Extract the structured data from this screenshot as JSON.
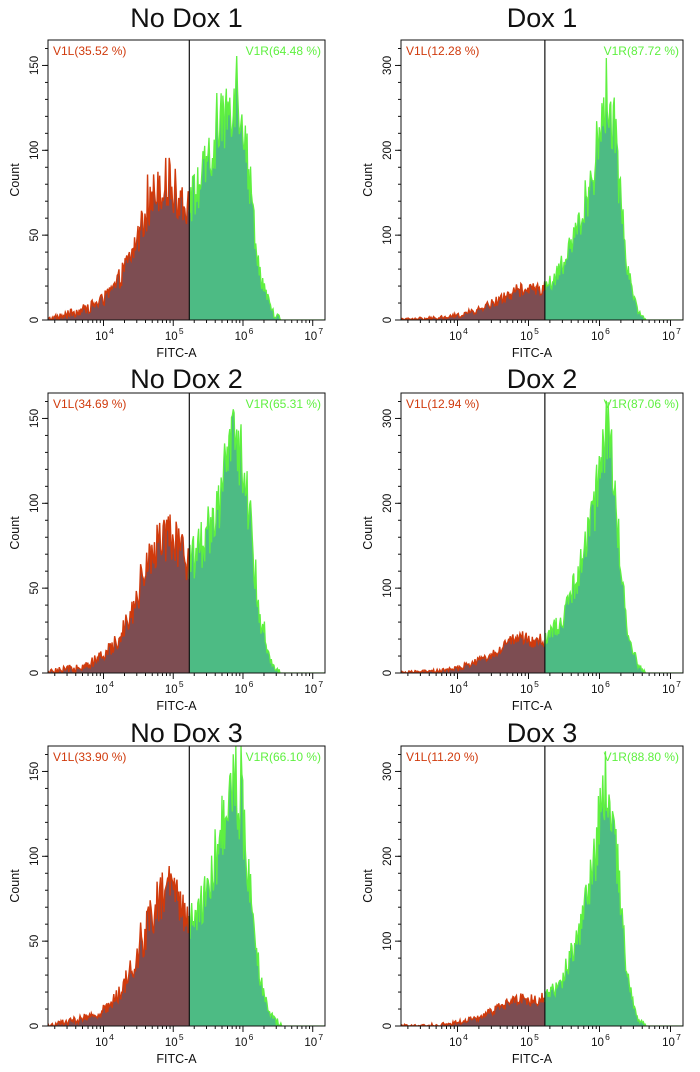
{
  "figure": {
    "colors": {
      "left_fill": "#7d4d52",
      "left_stroke": "#d03a0c",
      "left_label": "#d03a0c",
      "right_fill": "#4dbb84",
      "right_stroke": "#5ff040",
      "right_label": "#5ff040",
      "gate_line": "#111111",
      "axis": "#111111"
    }
  },
  "chart_data": [
    {
      "type": "histogram",
      "title": "No Dox 1",
      "xlabel": "FITC-A",
      "ylabel": "Count",
      "x_scale": "log10",
      "xlim": [
        1600,
        15000000
      ],
      "ylim": [
        0,
        165
      ],
      "x_ticks": [
        "10^4",
        "10^5",
        "10^6",
        "10^7"
      ],
      "y_ticks": [
        0,
        50,
        100,
        150
      ],
      "gate_x": 170000,
      "gates": [
        {
          "name": "V1L",
          "label": "V1L(35.52 %)",
          "percent": 35.52
        },
        {
          "name": "V1R",
          "label": "V1R(64.48 %)",
          "percent": 64.48
        }
      ],
      "peak": {
        "x": 820000,
        "count": 142
      },
      "histogram_points": [
        [
          1600,
          0
        ],
        [
          3000,
          3
        ],
        [
          6000,
          7
        ],
        [
          10000,
          12
        ],
        [
          15000,
          20
        ],
        [
          25000,
          38
        ],
        [
          40000,
          60
        ],
        [
          60000,
          80
        ],
        [
          80000,
          80
        ],
        [
          110000,
          74
        ],
        [
          170000,
          68
        ],
        [
          250000,
          82
        ],
        [
          400000,
          100
        ],
        [
          600000,
          125
        ],
        [
          800000,
          140
        ],
        [
          1000000,
          120
        ],
        [
          1300000,
          75
        ],
        [
          1700000,
          30
        ],
        [
          2500000,
          6
        ],
        [
          3500000,
          0
        ]
      ]
    },
    {
      "type": "histogram",
      "title": "Dox 1",
      "xlabel": "FITC-A",
      "ylabel": "Count",
      "x_scale": "log10",
      "xlim": [
        1600,
        15000000
      ],
      "ylim": [
        0,
        330
      ],
      "x_ticks": [
        "10^4",
        "10^5",
        "10^6",
        "10^7"
      ],
      "y_ticks": [
        0,
        100,
        200,
        300
      ],
      "gate_x": 170000,
      "gates": [
        {
          "name": "V1L",
          "label": "V1L(12.28 %)",
          "percent": 12.28
        },
        {
          "name": "V1R",
          "label": "V1R(87.72 %)",
          "percent": 87.72
        }
      ],
      "peak": {
        "x": 1250000,
        "count": 280
      },
      "histogram_points": [
        [
          1600,
          0
        ],
        [
          5000,
          2
        ],
        [
          10000,
          5
        ],
        [
          20000,
          12
        ],
        [
          40000,
          24
        ],
        [
          70000,
          35
        ],
        [
          100000,
          36
        ],
        [
          170000,
          38
        ],
        [
          300000,
          60
        ],
        [
          500000,
          110
        ],
        [
          800000,
          170
        ],
        [
          1100000,
          240
        ],
        [
          1300000,
          270
        ],
        [
          1600000,
          230
        ],
        [
          2000000,
          140
        ],
        [
          2500000,
          60
        ],
        [
          3500000,
          10
        ],
        [
          4500000,
          0
        ]
      ]
    },
    {
      "type": "histogram",
      "title": "No Dox 2",
      "xlabel": "FITC-A",
      "ylabel": "Count",
      "x_scale": "log10",
      "xlim": [
        1600,
        15000000
      ],
      "ylim": [
        0,
        165
      ],
      "x_ticks": [
        "10^4",
        "10^5",
        "10^6",
        "10^7"
      ],
      "y_ticks": [
        0,
        50,
        100,
        150
      ],
      "gate_x": 170000,
      "gates": [
        {
          "name": "V1L",
          "label": "V1L(34.69 %)",
          "percent": 34.69
        },
        {
          "name": "V1R",
          "label": "V1R(65.31 %)",
          "percent": 65.31
        }
      ],
      "peak": {
        "x": 900000,
        "count": 155
      },
      "histogram_points": [
        [
          1600,
          0
        ],
        [
          3000,
          2
        ],
        [
          6000,
          5
        ],
        [
          10000,
          10
        ],
        [
          15000,
          18
        ],
        [
          25000,
          35
        ],
        [
          40000,
          58
        ],
        [
          60000,
          82
        ],
        [
          80000,
          80
        ],
        [
          110000,
          74
        ],
        [
          170000,
          66
        ],
        [
          250000,
          75
        ],
        [
          400000,
          95
        ],
        [
          600000,
          122
        ],
        [
          800000,
          140
        ],
        [
          1000000,
          125
        ],
        [
          1300000,
          80
        ],
        [
          1700000,
          35
        ],
        [
          2500000,
          6
        ],
        [
          3500000,
          0
        ]
      ]
    },
    {
      "type": "histogram",
      "title": "Dox 2",
      "xlabel": "FITC-A",
      "ylabel": "Count",
      "x_scale": "log10",
      "xlim": [
        1600,
        15000000
      ],
      "ylim": [
        0,
        330
      ],
      "x_ticks": [
        "10^4",
        "10^5",
        "10^6",
        "10^7"
      ],
      "y_ticks": [
        0,
        100,
        200,
        300
      ],
      "gate_x": 170000,
      "gates": [
        {
          "name": "V1L",
          "label": "V1L(12.94 %)",
          "percent": 12.94
        },
        {
          "name": "V1R",
          "label": "V1R(87.06 %)",
          "percent": 87.06
        }
      ],
      "peak": {
        "x": 1250000,
        "count": 305
      },
      "histogram_points": [
        [
          1600,
          0
        ],
        [
          5000,
          2
        ],
        [
          10000,
          5
        ],
        [
          20000,
          14
        ],
        [
          40000,
          28
        ],
        [
          70000,
          42
        ],
        [
          100000,
          38
        ],
        [
          170000,
          40
        ],
        [
          300000,
          62
        ],
        [
          500000,
          115
        ],
        [
          800000,
          180
        ],
        [
          1100000,
          255
        ],
        [
          1300000,
          285
        ],
        [
          1600000,
          225
        ],
        [
          2000000,
          130
        ],
        [
          2500000,
          50
        ],
        [
          3500000,
          8
        ],
        [
          4500000,
          0
        ]
      ]
    },
    {
      "type": "histogram",
      "title": "No Dox 3",
      "xlabel": "FITC-A",
      "ylabel": "Count",
      "x_scale": "log10",
      "xlim": [
        1600,
        15000000
      ],
      "ylim": [
        0,
        165
      ],
      "x_ticks": [
        "10^4",
        "10^5",
        "10^6",
        "10^7"
      ],
      "y_ticks": [
        0,
        50,
        100,
        150
      ],
      "gate_x": 170000,
      "gates": [
        {
          "name": "V1L",
          "label": "V1L(33.90 %)",
          "percent": 33.9
        },
        {
          "name": "V1R",
          "label": "V1R(66.10 %)",
          "percent": 66.1
        }
      ],
      "peak": {
        "x": 820000,
        "count": 157
      },
      "histogram_points": [
        [
          1600,
          0
        ],
        [
          3000,
          2
        ],
        [
          6000,
          5
        ],
        [
          10000,
          9
        ],
        [
          15000,
          16
        ],
        [
          25000,
          32
        ],
        [
          40000,
          55
        ],
        [
          60000,
          75
        ],
        [
          80000,
          82
        ],
        [
          110000,
          74
        ],
        [
          170000,
          60
        ],
        [
          250000,
          72
        ],
        [
          400000,
          98
        ],
        [
          600000,
          130
        ],
        [
          800000,
          145
        ],
        [
          1000000,
          122
        ],
        [
          1300000,
          75
        ],
        [
          1700000,
          32
        ],
        [
          2500000,
          6
        ],
        [
          3500000,
          0
        ]
      ]
    },
    {
      "type": "histogram",
      "title": "Dox 3",
      "xlabel": "FITC-A",
      "ylabel": "Count",
      "x_scale": "log10",
      "xlim": [
        1600,
        15000000
      ],
      "ylim": [
        0,
        330
      ],
      "x_ticks": [
        "10^4",
        "10^5",
        "10^6",
        "10^7"
      ],
      "y_ticks": [
        0,
        100,
        200,
        300
      ],
      "gate_x": 170000,
      "gates": [
        {
          "name": "V1L",
          "label": "V1L(11.20 %)",
          "percent": 11.2
        },
        {
          "name": "V1R",
          "label": "V1R(88.80 %)",
          "percent": 88.8
        }
      ],
      "peak": {
        "x": 1250000,
        "count": 320
      },
      "histogram_points": [
        [
          1600,
          0
        ],
        [
          5000,
          1
        ],
        [
          10000,
          4
        ],
        [
          20000,
          10
        ],
        [
          40000,
          22
        ],
        [
          70000,
          32
        ],
        [
          100000,
          30
        ],
        [
          170000,
          32
        ],
        [
          300000,
          55
        ],
        [
          500000,
          105
        ],
        [
          800000,
          185
        ],
        [
          1100000,
          260
        ],
        [
          1300000,
          295
        ],
        [
          1600000,
          235
        ],
        [
          2000000,
          140
        ],
        [
          2500000,
          55
        ],
        [
          3500000,
          8
        ],
        [
          4500000,
          0
        ]
      ]
    }
  ]
}
